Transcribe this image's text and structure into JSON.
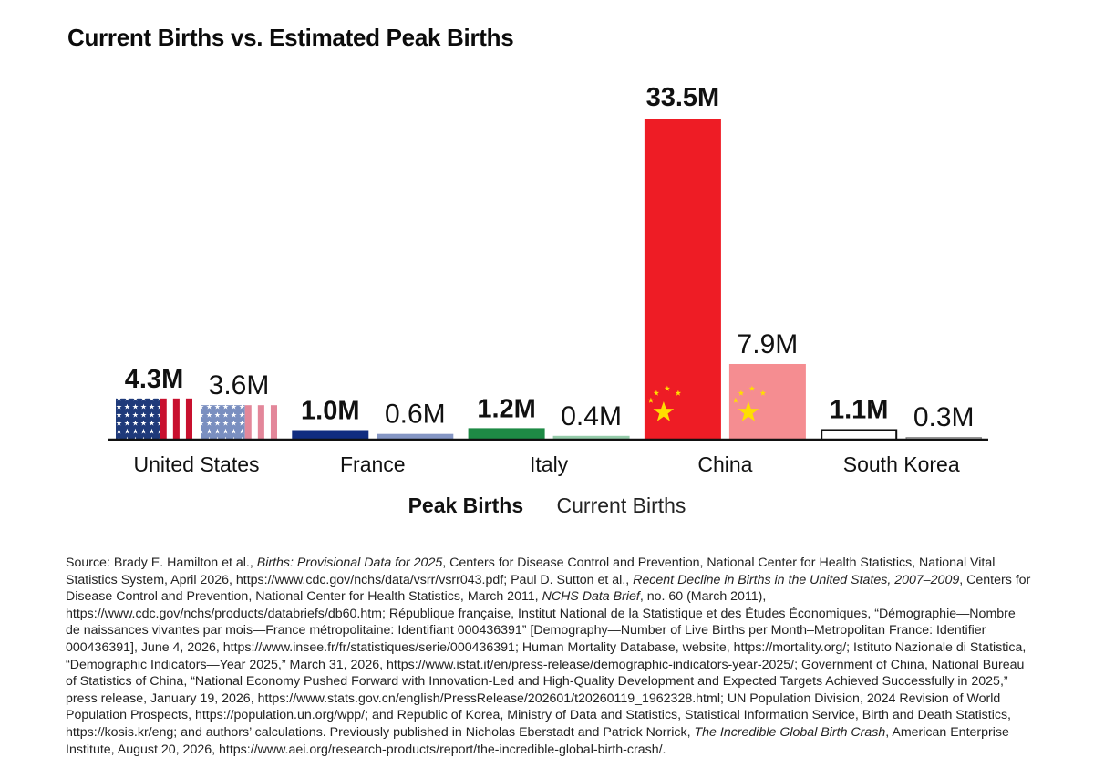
{
  "title": "Current Births vs. Estimated Peak Births",
  "chart_data": {
    "type": "bar",
    "categories": [
      "United States",
      "France",
      "Italy",
      "China",
      "South Korea"
    ],
    "series": [
      {
        "name": "Peak Births",
        "values": [
          4.3,
          1.0,
          1.2,
          33.5,
          1.1
        ],
        "labels": [
          "4.3M",
          "1.0M",
          "1.2M",
          "33.5M",
          "1.1M"
        ]
      },
      {
        "name": "Current Births",
        "values": [
          3.6,
          0.6,
          0.4,
          7.9,
          0.3
        ],
        "labels": [
          "3.6M",
          "0.6M",
          "0.4M",
          "7.9M",
          "0.3M"
        ]
      }
    ],
    "bar_styles": [
      {
        "category": "United States",
        "pattern": "us-flag",
        "peak_color": "#1f3a7a",
        "peak_stripe": "#c8102e",
        "current_color": "#7a8fc0",
        "current_stripe": "#e3879a"
      },
      {
        "category": "France",
        "pattern": "solid",
        "peak_color": "#102c80",
        "current_color": "#8596c4"
      },
      {
        "category": "Italy",
        "pattern": "solid",
        "peak_color": "#1e8a45",
        "current_color": "#95ccaa"
      },
      {
        "category": "China",
        "pattern": "cn-flag",
        "peak_color": "#ee1c25",
        "star_color": "#ffde00",
        "current_color": "#f58d91"
      },
      {
        "category": "South Korea",
        "pattern": "outline",
        "peak_color": "#ffffff",
        "outline": "#111111",
        "current_color": "#ffffff",
        "current_outline": "#888888"
      }
    ],
    "ylim": [
      0,
      33.5
    ],
    "xlabel": "",
    "ylabel": "",
    "grid": false,
    "legend_position": "bottom-center"
  },
  "legend": {
    "peak": "Peak Births",
    "current": "Current Births"
  },
  "source": {
    "parts": [
      {
        "t": "Source: Brady E. Hamilton et al., "
      },
      {
        "t": "Births: Provisional Data for 2025",
        "i": true
      },
      {
        "t": ", Centers for Disease Control and Prevention, National Center for Health Statistics, National Vital Statistics System, April 2026, https://www.cdc.gov/nchs/data/vsrr/vsrr043.pdf; Paul D. Sutton et al., "
      },
      {
        "t": "Recent Decline in Births in the United States, 2007–2009",
        "i": true
      },
      {
        "t": ", Centers for Disease Control and Prevention, National Center for Health Statistics, March 2011, "
      },
      {
        "t": "NCHS Data Brief",
        "i": true
      },
      {
        "t": ", no. 60 (March 2011), https://www.cdc.gov/nchs/products/databriefs/db60.htm; République française, Institut National de la Statistique et des Études Économiques, “Démographie—Nombre de naissances vivantes par mois—France métropolitaine: Identifiant 000436391” [Demography—Number of Live Births per Month–Metropolitan France: Identifier 000436391], June 4, 2026, https://www.insee.fr/fr/statistiques/serie/000436391; Human Mortality Database, website, https://mortality.org/; Istituto Nazionale di Statistica, “Demographic Indicators—Year 2025,” March 31, 2026, https://www.istat.it/en/press-release/demographic-indicators-year-2025/; Government of China, National Bureau of Statistics of China, “National Economy Pushed Forward with Innovation-Led and High-Quality Development and Expected Targets Achieved Successfully in 2025,” press release, January 19, 2026, https://www.stats.gov.cn/english/PressRelease/202601/t20260119_1962328.html; UN Population Division, 2024 Revision of World Population Prospects, https://population.un.org/wpp/; and Republic of Korea, Ministry of Data and Statistics, Statistical Information Service, Birth and Death Statistics, https://kosis.kr/eng; and authors’ calculations. Previously published in Nicholas Eberstadt and Patrick Norrick, "
      },
      {
        "t": "The Incredible Global Birth Crash",
        "i": true
      },
      {
        "t": ", American Enterprise Institute, August 20, 2026, https://www.aei.org/research-products/report/the-incredible-global-birth-crash/."
      }
    ]
  }
}
